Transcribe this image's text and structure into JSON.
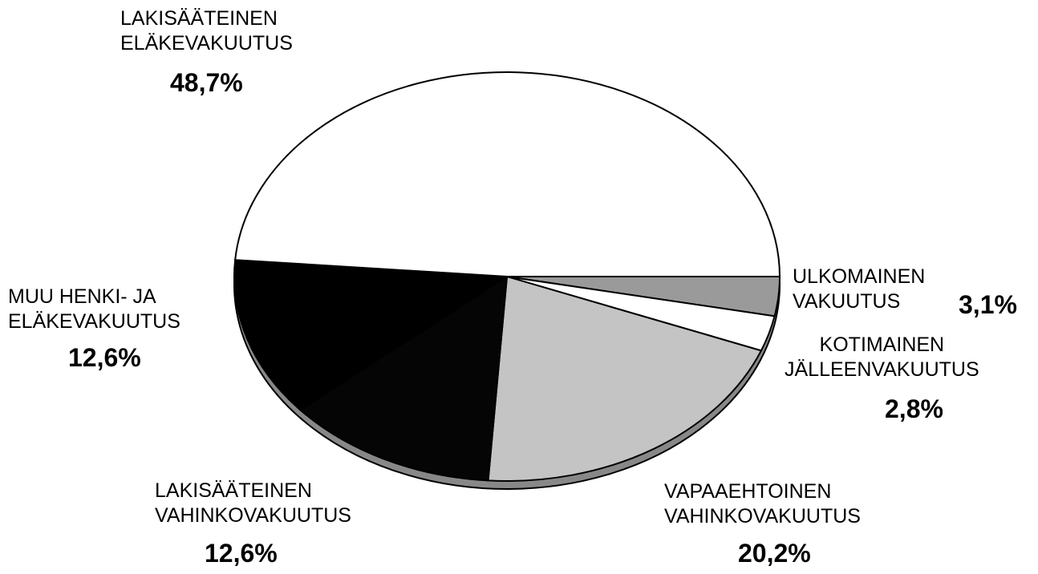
{
  "chart_data": {
    "type": "pie",
    "categories": [
      "ULKOMAINEN\nVAKUUTUS",
      "KOTIMAINEN\nJÄLLEENVAKUUTUS",
      "VAPAAEHTOINEN\nVAHINKOVAKUUTUS",
      "LAKISÄÄTEINEN\nVAHINKOVAKUUTUS",
      "MUU HENKI- JA\nELÄKEVAKUUTUS",
      "LAKISÄÄTEINEN\nELÄKEVAKUUTUS"
    ],
    "values": [
      3.1,
      2.8,
      20.2,
      12.6,
      12.6,
      48.7
    ],
    "value_labels": [
      "3,1%",
      "2,8%",
      "20,2%",
      "12,6%",
      "12,6%",
      "48,7%"
    ],
    "colors": [
      "#9a9a9a",
      "#ffffff",
      "#c4c4c4",
      "#050505",
      "#000000",
      "#ffffff"
    ]
  }
}
